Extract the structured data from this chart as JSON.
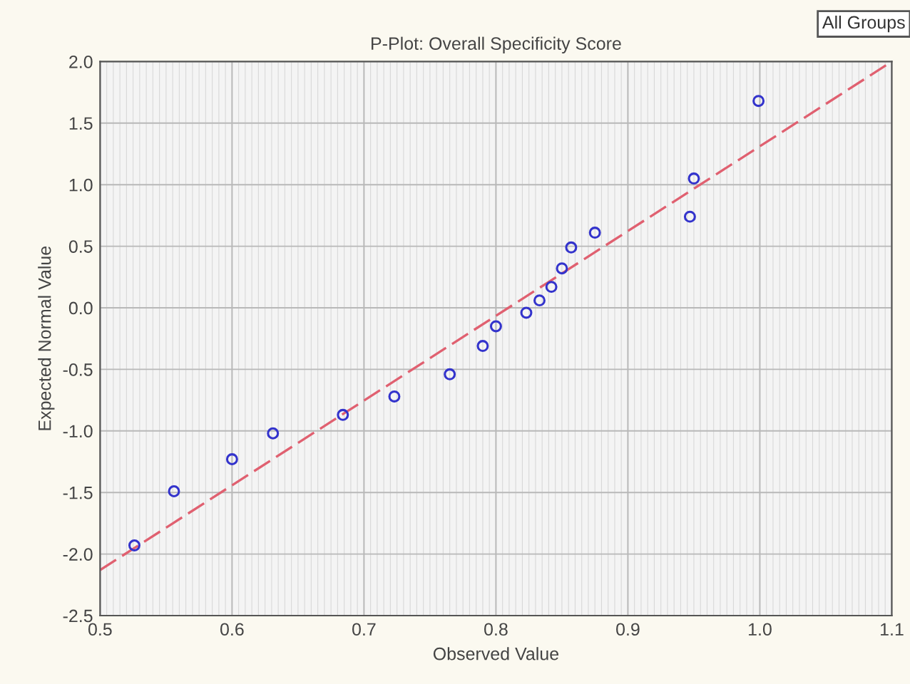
{
  "chart_data": {
    "type": "scatter",
    "title": "P-Plot: Overall Specificity Score",
    "xlabel": "Observed Value",
    "ylabel": "Expected Normal Value",
    "annotations": [
      "All Groups"
    ],
    "series": [
      {
        "color": "#3333cc",
        "marker": "circle",
        "x": [
          0.526,
          0.556,
          0.6,
          0.631,
          0.684,
          0.723,
          0.765,
          0.79,
          0.8,
          0.823,
          0.833,
          0.842,
          0.85,
          0.857,
          0.875,
          0.947,
          0.95,
          0.999
        ],
        "values": [
          -1.93,
          -1.49,
          -1.23,
          -1.02,
          -0.87,
          -0.72,
          -0.54,
          -0.31,
          -0.15,
          -0.04,
          0.06,
          0.17,
          0.32,
          0.49,
          0.61,
          0.74,
          1.05,
          1.68
        ]
      },
      {
        "type": "line",
        "color": "#e06070",
        "line_style": "dashed",
        "x": [
          0.5,
          1.1
        ],
        "values": [
          -2.13,
          2.0
        ]
      }
    ],
    "xlim": [
      0.5,
      1.1
    ],
    "xticks": [
      {
        "value": 0.5,
        "label": "0.5"
      },
      {
        "value": 0.6,
        "label": "0.6"
      },
      {
        "value": 0.7,
        "label": "0.7"
      },
      {
        "value": 0.8,
        "label": "0.8"
      },
      {
        "value": 0.9,
        "label": "0.9"
      },
      {
        "value": 1.0,
        "label": "1.0"
      },
      {
        "value": 1.1,
        "label": "1.1"
      }
    ],
    "ylim": [
      -2.5,
      2.0
    ],
    "yticks": [
      {
        "value": -2.5,
        "label": "-2.5"
      },
      {
        "value": -2.0,
        "label": "-2.0"
      },
      {
        "value": -1.5,
        "label": "-1.5"
      },
      {
        "value": -1.0,
        "label": "-1.0"
      },
      {
        "value": -0.5,
        "label": "-0.5"
      },
      {
        "value": 0.0,
        "label": "0.0"
      },
      {
        "value": 0.5,
        "label": "0.5"
      },
      {
        "value": 1.0,
        "label": "1.0"
      },
      {
        "value": 1.5,
        "label": "1.5"
      },
      {
        "value": 2.0,
        "label": "2.0"
      }
    ],
    "grid": true,
    "legend": false
  }
}
